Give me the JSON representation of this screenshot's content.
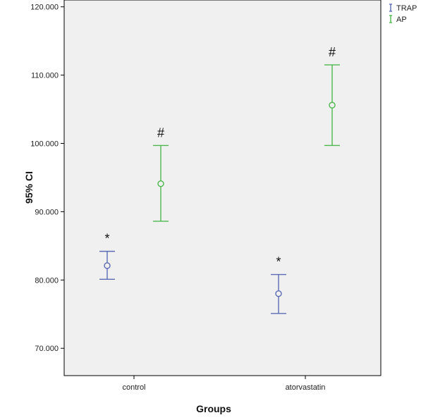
{
  "chart_data": {
    "type": "errorbar",
    "title": "",
    "xlabel": "Groups",
    "ylabel": "95% CI",
    "categories": [
      "control",
      "atorvastatin"
    ],
    "ylim": [
      66,
      121
    ],
    "yticks": [
      70,
      80,
      90,
      100,
      110,
      120
    ],
    "ytick_labels": [
      "70.000",
      "80.000",
      "90.000",
      "100.000",
      "110.000",
      "120.000"
    ],
    "grid": false,
    "legend_position": "top-right",
    "series": [
      {
        "name": "TRAP",
        "color": "#5b6bb5",
        "mean": [
          82.1,
          78.0
        ],
        "lower": [
          80.1,
          75.1
        ],
        "upper": [
          84.2,
          80.8
        ],
        "annotation": "*"
      },
      {
        "name": "AP",
        "color": "#4cb84c",
        "mean": [
          94.1,
          105.6
        ],
        "lower": [
          88.6,
          99.7
        ],
        "upper": [
          99.7,
          111.5
        ],
        "annotation": "#"
      }
    ]
  }
}
